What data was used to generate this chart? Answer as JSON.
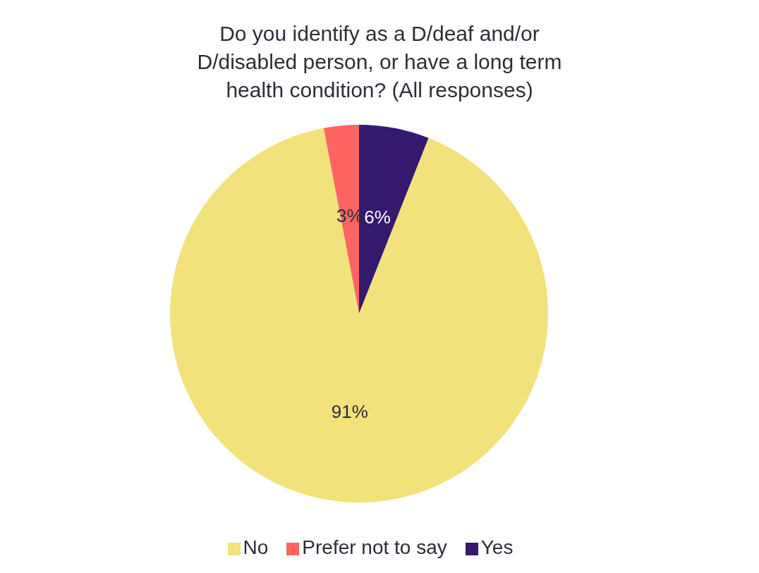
{
  "chart_data": {
    "type": "pie",
    "title": "Do you identify as a D/deaf and/or D/disabled person, or have a long term health condition? (All responses)",
    "categories": [
      "Yes",
      "No",
      "Prefer not to say"
    ],
    "values": [
      6,
      91,
      3
    ],
    "colors": [
      "#341a6e",
      "#f1e27c",
      "#fe6560"
    ],
    "value_labels": [
      "6%",
      "91%",
      "3%"
    ],
    "legend": "bottom"
  }
}
